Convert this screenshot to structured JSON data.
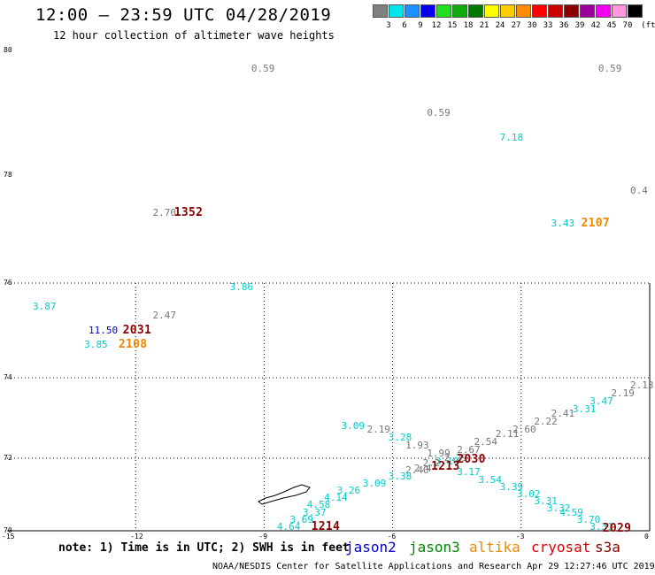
{
  "header": {
    "title": "12:00 – 23:59 UTC 04/28/2019",
    "subtitle": "12 hour collection of altimeter wave heights"
  },
  "colorbar": {
    "unit": "(ft)",
    "swatches": [
      {
        "label": "3",
        "color": "#808080"
      },
      {
        "label": "6",
        "color": "#00e5ee"
      },
      {
        "label": "9",
        "color": "#1e90ff"
      },
      {
        "label": "12",
        "color": "#0000ee"
      },
      {
        "label": "15",
        "color": "#22dd22"
      },
      {
        "label": "18",
        "color": "#11aa11"
      },
      {
        "label": "21",
        "color": "#007700"
      },
      {
        "label": "24",
        "color": "#ffff00"
      },
      {
        "label": "27",
        "color": "#ffcc00"
      },
      {
        "label": "30",
        "color": "#ff8c00"
      },
      {
        "label": "33",
        "color": "#ff0000"
      },
      {
        "label": "36",
        "color": "#cc0000"
      },
      {
        "label": "39",
        "color": "#880000"
      },
      {
        "label": "42",
        "color": "#990099"
      },
      {
        "label": "45",
        "color": "#ee00ee"
      },
      {
        "label": "70",
        "color": "#ff99dd"
      },
      {
        "label": "",
        "color": "#000000"
      }
    ]
  },
  "axes": {
    "lon_ticks": [
      "-15",
      "-12",
      "-9",
      "-6",
      "-3",
      "0"
    ],
    "lat_ticks": [
      "70",
      "72",
      "74",
      "76",
      "78",
      "80"
    ]
  },
  "colors": {
    "gray": "#777777",
    "cyan": "#00cccc",
    "blue": "#0000cc",
    "orange": "#ee8800",
    "darkred": "#880000",
    "green": "#008800",
    "red": "#dd0000"
  },
  "wave_labels": [
    {
      "text": "0.59",
      "lon": -9.3,
      "lat": 79.7,
      "c": "gray"
    },
    {
      "text": "0.59",
      "lon": -1.2,
      "lat": 79.7,
      "c": "gray"
    },
    {
      "text": "0.59",
      "lon": -5.2,
      "lat": 79.0,
      "c": "gray"
    },
    {
      "text": "7.18",
      "lon": -3.5,
      "lat": 78.6,
      "c": "cyan"
    },
    {
      "text": "0.4",
      "lon": -0.3,
      "lat": 77.7,
      "c": "gray"
    },
    {
      "text": "2.70",
      "lon": -11.6,
      "lat": 77.3,
      "c": "gray"
    },
    {
      "text": "3.43",
      "lon": -2.3,
      "lat": 77.1,
      "c": "cyan"
    },
    {
      "text": "3.86",
      "lon": -9.8,
      "lat": 75.9,
      "c": "cyan"
    },
    {
      "text": "3.87",
      "lon": -14.4,
      "lat": 75.5,
      "c": "cyan"
    },
    {
      "text": "2.47",
      "lon": -11.6,
      "lat": 75.3,
      "c": "gray"
    },
    {
      "text": "11.50",
      "lon": -13.1,
      "lat": 75.0,
      "c": "blue"
    },
    {
      "text": "3.85",
      "lon": -13.2,
      "lat": 74.7,
      "c": "cyan"
    },
    {
      "text": "2.13",
      "lon": -0.4,
      "lat": 73.8,
      "c": "gray"
    },
    {
      "text": "2.19",
      "lon": -0.9,
      "lat": 73.6,
      "c": "gray"
    },
    {
      "text": "3.47",
      "lon": -1.4,
      "lat": 73.4,
      "c": "cyan"
    },
    {
      "text": "3.31",
      "lon": -1.8,
      "lat": 73.2,
      "c": "cyan"
    },
    {
      "text": "2.41",
      "lon": -2.3,
      "lat": 73.1,
      "c": "gray"
    },
    {
      "text": "2.22",
      "lon": -2.7,
      "lat": 72.9,
      "c": "gray"
    },
    {
      "text": "2.60",
      "lon": -3.2,
      "lat": 72.7,
      "c": "gray"
    },
    {
      "text": "3.09",
      "lon": -7.2,
      "lat": 72.8,
      "c": "cyan"
    },
    {
      "text": "2.19",
      "lon": -6.6,
      "lat": 72.7,
      "c": "gray"
    },
    {
      "text": "2.11",
      "lon": -3.6,
      "lat": 72.6,
      "c": "gray"
    },
    {
      "text": "3.28",
      "lon": -6.1,
      "lat": 72.5,
      "c": "cyan"
    },
    {
      "text": "2.54",
      "lon": -4.1,
      "lat": 72.4,
      "c": "gray"
    },
    {
      "text": "1.93",
      "lon": -5.7,
      "lat": 72.3,
      "c": "gray"
    },
    {
      "text": "2.67",
      "lon": -4.5,
      "lat": 72.2,
      "c": "gray"
    },
    {
      "text": "1.99",
      "lon": -5.2,
      "lat": 72.1,
      "c": "gray"
    },
    {
      "text": "2.29",
      "lon": -4.8,
      "lat": 72.0,
      "c": "gray"
    },
    {
      "text": "3.10",
      "lon": -5.0,
      "lat": 71.9,
      "c": "cyan"
    },
    {
      "text": "2.2",
      "lon": -5.3,
      "lat": 71.85,
      "c": "gray"
    },
    {
      "text": "2.4",
      "lon": -5.5,
      "lat": 71.7,
      "c": "gray"
    },
    {
      "text": "2.40",
      "lon": -5.7,
      "lat": 71.65,
      "c": "gray"
    },
    {
      "text": "3.38",
      "lon": -6.1,
      "lat": 71.5,
      "c": "cyan"
    },
    {
      "text": "3.17",
      "lon": -4.5,
      "lat": 71.6,
      "c": "cyan"
    },
    {
      "text": "3.54",
      "lon": -4.0,
      "lat": 71.4,
      "c": "cyan"
    },
    {
      "text": "3.09",
      "lon": -6.7,
      "lat": 71.3,
      "c": "cyan"
    },
    {
      "text": "3.39",
      "lon": -3.5,
      "lat": 71.2,
      "c": "cyan"
    },
    {
      "text": "3.26",
      "lon": -7.3,
      "lat": 71.1,
      "c": "cyan"
    },
    {
      "text": "3.02",
      "lon": -3.1,
      "lat": 71.0,
      "c": "cyan"
    },
    {
      "text": "4.14",
      "lon": -7.6,
      "lat": 70.9,
      "c": "cyan"
    },
    {
      "text": "3.31",
      "lon": -2.7,
      "lat": 70.8,
      "c": "cyan"
    },
    {
      "text": "4.58",
      "lon": -8.0,
      "lat": 70.7,
      "c": "cyan"
    },
    {
      "text": "3.32",
      "lon": -2.4,
      "lat": 70.6,
      "c": "cyan"
    },
    {
      "text": "3.37",
      "lon": -8.1,
      "lat": 70.5,
      "c": "cyan"
    },
    {
      "text": "4.59",
      "lon": -2.1,
      "lat": 70.5,
      "c": "cyan"
    },
    {
      "text": "3.69",
      "lon": -8.4,
      "lat": 70.3,
      "c": "cyan"
    },
    {
      "text": "3.70",
      "lon": -1.7,
      "lat": 70.3,
      "c": "cyan"
    },
    {
      "text": "4.64",
      "lon": -8.7,
      "lat": 70.1,
      "c": "cyan"
    },
    {
      "text": "3.31",
      "lon": -1.4,
      "lat": 70.1,
      "c": "cyan"
    }
  ],
  "time_labels": [
    {
      "text": "1352",
      "lon": -11.1,
      "lat": 77.3,
      "c": "darkred"
    },
    {
      "text": "2107",
      "lon": -1.6,
      "lat": 77.1,
      "c": "orange"
    },
    {
      "text": "2031",
      "lon": -12.3,
      "lat": 75.0,
      "c": "darkred"
    },
    {
      "text": "2108",
      "lon": -12.4,
      "lat": 74.7,
      "c": "orange"
    },
    {
      "text": "2030",
      "lon": -4.5,
      "lat": 71.95,
      "c": "darkred"
    },
    {
      "text": "1213",
      "lon": -5.1,
      "lat": 71.75,
      "c": "darkred"
    },
    {
      "text": "1214",
      "lon": -7.9,
      "lat": 70.1,
      "c": "darkred"
    },
    {
      "text": "2029",
      "lon": -1.1,
      "lat": 70.05,
      "c": "darkred"
    }
  ],
  "footer": {
    "note": "note: 1) Time is in UTC; 2) SWH is in feet",
    "legend": [
      {
        "name": "jason2",
        "c": "blue"
      },
      {
        "name": "jason3",
        "c": "green"
      },
      {
        "name": "altika",
        "c": "orange"
      },
      {
        "name": "cryosat",
        "c": "red"
      },
      {
        "name": "s3a",
        "c": "darkred"
      }
    ],
    "credit": "NOAA/NESDIS Center for Satellite Applications and Research   Apr 29 12:27:46 UTC 2019"
  }
}
